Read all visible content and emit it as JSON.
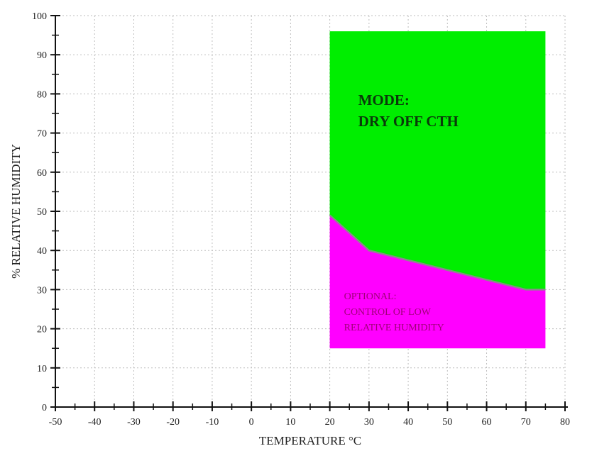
{
  "chart_data": {
    "type": "area",
    "title": "",
    "xlabel": "TEMPERATURE °C",
    "ylabel": "% RELATIVE HUMIDITY",
    "xlim": [
      -50,
      80
    ],
    "ylim": [
      0,
      100
    ],
    "x_ticks": [
      -50,
      -40,
      -30,
      -20,
      -10,
      0,
      10,
      20,
      30,
      40,
      50,
      60,
      70,
      80
    ],
    "y_ticks": [
      0,
      10,
      20,
      30,
      40,
      50,
      60,
      70,
      80,
      90,
      100
    ],
    "grid": true,
    "regions": [
      {
        "name": "MODE: DRY OFF CTH",
        "label_lines": [
          "MODE:",
          "DRY OFF CTH"
        ],
        "color": "#00ee00",
        "text_color": "#0a3a0a",
        "x_range": [
          20,
          75
        ],
        "y_top": 96,
        "boundary_points": [
          [
            20,
            49
          ],
          [
            30,
            40
          ],
          [
            70,
            30
          ],
          [
            75,
            30
          ]
        ]
      },
      {
        "name": "OPTIONAL: CONTROL OF LOW RELATIVE HUMIDITY",
        "label_lines": [
          "OPTIONAL:",
          "CONTROL OF LOW",
          "RELATIVE HUMIDITY"
        ],
        "color": "#ff00ff",
        "text_color": "#a0007a",
        "x_range": [
          20,
          75
        ],
        "y_bottom": 15,
        "boundary_points": [
          [
            20,
            49
          ],
          [
            30,
            40
          ],
          [
            70,
            30
          ],
          [
            75,
            30
          ]
        ]
      }
    ]
  }
}
